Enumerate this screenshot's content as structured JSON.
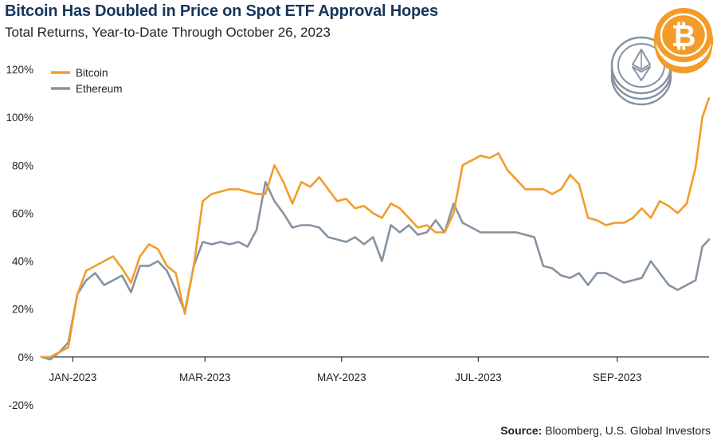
{
  "title": "Bitcoin Has Doubled in Price on Spot ETF Approval Hopes",
  "subtitle": "Total Returns, Year-to-Date Through October 26, 2023",
  "source": {
    "label": "Source:",
    "text": "Bloomberg, U.S. Global Investors"
  },
  "icons": [
    "bitcoin-coin-icon",
    "ethereum-coin-icon"
  ],
  "colors": {
    "bitcoin": "#f39c2a",
    "ethereum": "#8593a1",
    "title": "#16365c",
    "coin_gold": "#f39c2a",
    "coin_gray": "#8593a1"
  },
  "chart_data": {
    "type": "line",
    "title": "Bitcoin Has Doubled in Price on Spot ETF Approval Hopes",
    "subtitle": "Total Returns, Year-to-Date Through October 26, 2023",
    "xlabel": "",
    "ylabel": "",
    "x_tick_labels": [
      "JAN-2023",
      "MAR-2023",
      "MAY-2023",
      "JUL-2023",
      "SEP-2023"
    ],
    "x_tick_dates": [
      "2023-01-15",
      "2023-03-15",
      "2023-05-15",
      "2023-07-15",
      "2023-09-15"
    ],
    "y_tick_labels": [
      "-20%",
      "0%",
      "20%",
      "40%",
      "60%",
      "80%",
      "100%",
      "120%"
    ],
    "y_ticks": [
      -20,
      0,
      20,
      40,
      60,
      80,
      100,
      120
    ],
    "ylim": [
      -20,
      120
    ],
    "xlim": [
      "2023-01-01",
      "2023-10-26"
    ],
    "grid": false,
    "legend_position": "top-left",
    "x": [
      "2023-01-01",
      "2023-01-05",
      "2023-01-09",
      "2023-01-13",
      "2023-01-17",
      "2023-01-21",
      "2023-01-25",
      "2023-01-29",
      "2023-02-02",
      "2023-02-06",
      "2023-02-10",
      "2023-02-14",
      "2023-02-18",
      "2023-02-22",
      "2023-02-26",
      "2023-03-02",
      "2023-03-06",
      "2023-03-10",
      "2023-03-14",
      "2023-03-18",
      "2023-03-22",
      "2023-03-26",
      "2023-03-30",
      "2023-04-03",
      "2023-04-07",
      "2023-04-11",
      "2023-04-15",
      "2023-04-19",
      "2023-04-23",
      "2023-04-27",
      "2023-05-01",
      "2023-05-05",
      "2023-05-09",
      "2023-05-13",
      "2023-05-17",
      "2023-05-21",
      "2023-05-25",
      "2023-05-29",
      "2023-06-02",
      "2023-06-06",
      "2023-06-10",
      "2023-06-14",
      "2023-06-18",
      "2023-06-22",
      "2023-06-26",
      "2023-06-30",
      "2023-07-04",
      "2023-07-08",
      "2023-07-12",
      "2023-07-16",
      "2023-07-20",
      "2023-07-24",
      "2023-07-28",
      "2023-08-01",
      "2023-08-05",
      "2023-08-09",
      "2023-08-13",
      "2023-08-17",
      "2023-08-21",
      "2023-08-25",
      "2023-08-29",
      "2023-09-02",
      "2023-09-06",
      "2023-09-10",
      "2023-09-14",
      "2023-09-18",
      "2023-09-22",
      "2023-09-26",
      "2023-09-30",
      "2023-10-04",
      "2023-10-08",
      "2023-10-12",
      "2023-10-16",
      "2023-10-20",
      "2023-10-23",
      "2023-10-26"
    ],
    "series": [
      {
        "name": "Bitcoin",
        "color": "#f39c2a",
        "values": [
          0,
          0,
          2,
          4,
          26,
          36,
          38,
          40,
          42,
          37,
          31,
          42,
          47,
          45,
          38,
          35,
          18,
          38,
          65,
          68,
          69,
          70,
          70,
          69,
          68,
          68,
          80,
          73,
          64,
          73,
          71,
          75,
          70,
          65,
          66,
          62,
          63,
          60,
          58,
          64,
          62,
          58,
          54,
          55,
          52,
          52,
          60,
          80,
          82,
          84,
          83,
          85,
          78,
          74,
          70,
          70,
          70,
          68,
          70,
          76,
          72,
          58,
          57,
          55,
          56,
          56,
          58,
          62,
          58,
          65,
          63,
          60,
          64,
          79,
          100,
          108
        ]
      },
      {
        "name": "Ethereum",
        "color": "#8593a1",
        "values": [
          0,
          -1,
          2,
          6,
          26,
          32,
          35,
          30,
          32,
          34,
          27,
          38,
          38,
          40,
          36,
          28,
          19,
          38,
          48,
          47,
          48,
          47,
          48,
          46,
          53,
          73,
          65,
          60,
          54,
          55,
          55,
          54,
          50,
          49,
          48,
          50,
          47,
          50,
          40,
          55,
          52,
          55,
          51,
          52,
          57,
          52,
          64,
          56,
          54,
          52,
          52,
          52,
          52,
          52,
          51,
          50,
          38,
          37,
          34,
          33,
          35,
          30,
          35,
          35,
          33,
          31,
          32,
          33,
          40,
          35,
          30,
          28,
          30,
          32,
          46,
          49
        ]
      }
    ]
  }
}
